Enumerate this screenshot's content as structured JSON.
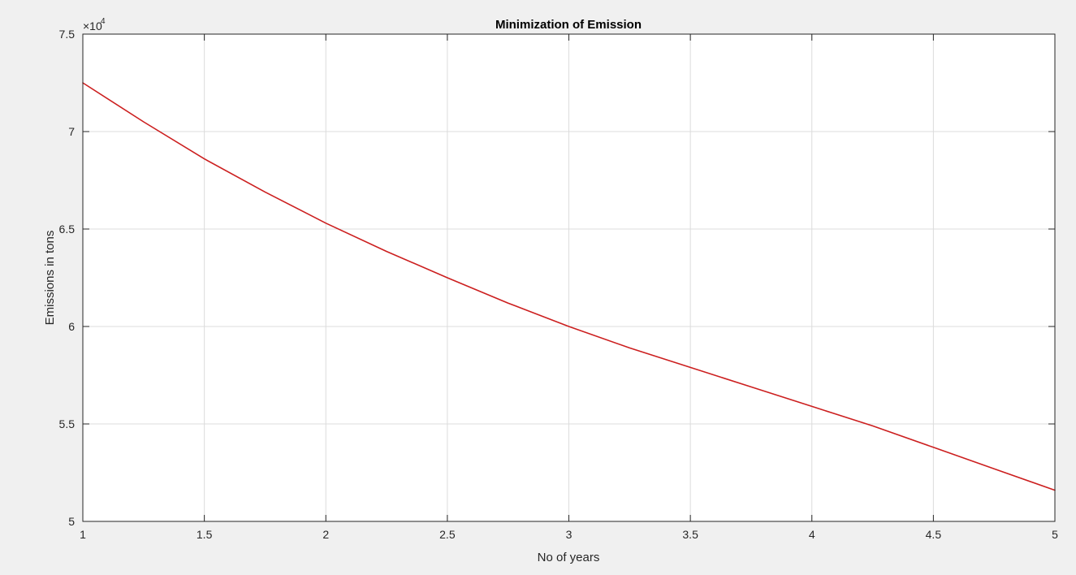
{
  "chart_data": {
    "type": "line",
    "title": "Minimization of Emission",
    "xlabel": "No of years",
    "ylabel": "Emissions in tons",
    "y_exponent_base": "×10",
    "y_exponent_power": "4",
    "xlim": [
      1,
      5
    ],
    "ylim": [
      5,
      7.5
    ],
    "x_ticks": [
      1,
      1.5,
      2,
      2.5,
      3,
      3.5,
      4,
      4.5,
      5
    ],
    "x_tick_labels": [
      "1",
      "1.5",
      "2",
      "2.5",
      "3",
      "3.5",
      "4",
      "4.5",
      "5"
    ],
    "y_ticks": [
      5,
      5.5,
      6,
      6.5,
      7,
      7.5
    ],
    "y_tick_labels": [
      "5",
      "5.5",
      "6",
      "6.5",
      "7",
      "7.5"
    ],
    "grid": true,
    "legend": "none",
    "series": [
      {
        "color": "#cc1f1f",
        "x": [
          1,
          1.25,
          1.5,
          1.75,
          2,
          2.25,
          2.5,
          2.75,
          3,
          3.25,
          3.5,
          3.75,
          4,
          4.25,
          4.5,
          4.75,
          5
        ],
        "y": [
          7.25,
          7.05,
          6.86,
          6.69,
          6.53,
          6.385,
          6.25,
          6.12,
          6.0,
          5.89,
          5.79,
          5.69,
          5.59,
          5.49,
          5.38,
          5.27,
          5.16
        ]
      }
    ]
  },
  "colors": {
    "figure_background": "#f0f0f0",
    "axes_background": "#ffffff",
    "grid": "#dcdcdc",
    "axes": "#262626"
  }
}
